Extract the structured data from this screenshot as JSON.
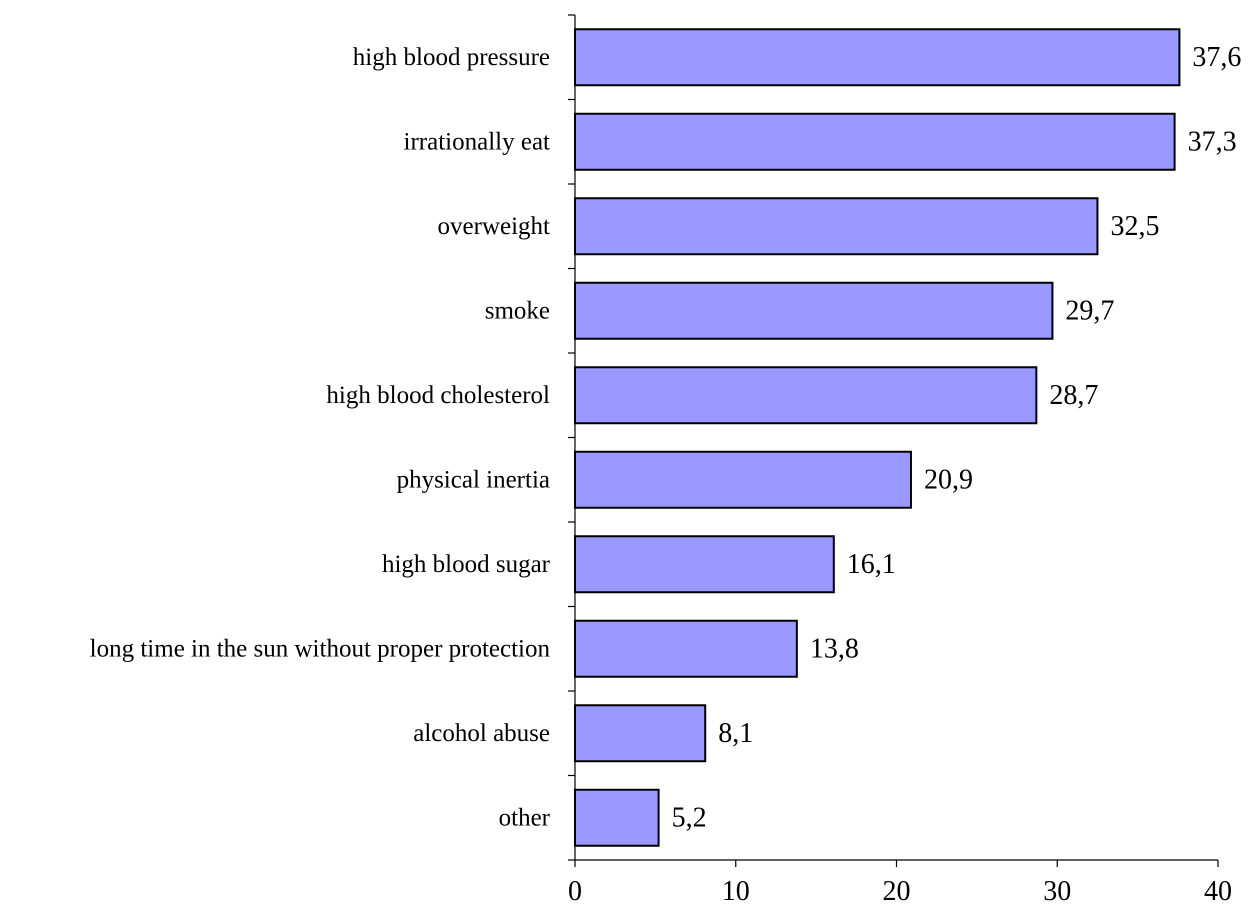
{
  "chart_data": {
    "type": "bar",
    "orientation": "horizontal",
    "categories": [
      "high blood pressure",
      "irrationally eat",
      "overweight",
      "smoke",
      "high blood cholesterol",
      "physical inertia",
      "high blood sugar",
      "long time in the sun without proper protection",
      "alcohol abuse",
      "other"
    ],
    "values": [
      37.6,
      37.3,
      32.5,
      29.7,
      28.7,
      20.9,
      16.1,
      13.8,
      8.1,
      5.2
    ],
    "value_labels": [
      "37,6",
      "37,3",
      "32,5",
      "29,7",
      "28,7",
      "20,9",
      "16,1",
      "13,8",
      "8,1",
      "5,2"
    ],
    "x_ticks": [
      0,
      10,
      20,
      30,
      40
    ],
    "x_tick_labels": [
      "0",
      "10",
      "20",
      "30",
      "40"
    ],
    "xlim": [
      0,
      40
    ],
    "title": "",
    "xlabel": "",
    "ylabel": "",
    "grid": false,
    "legend": "none",
    "bar_color": "#9999ff",
    "bar_edge_color": "#000000"
  }
}
